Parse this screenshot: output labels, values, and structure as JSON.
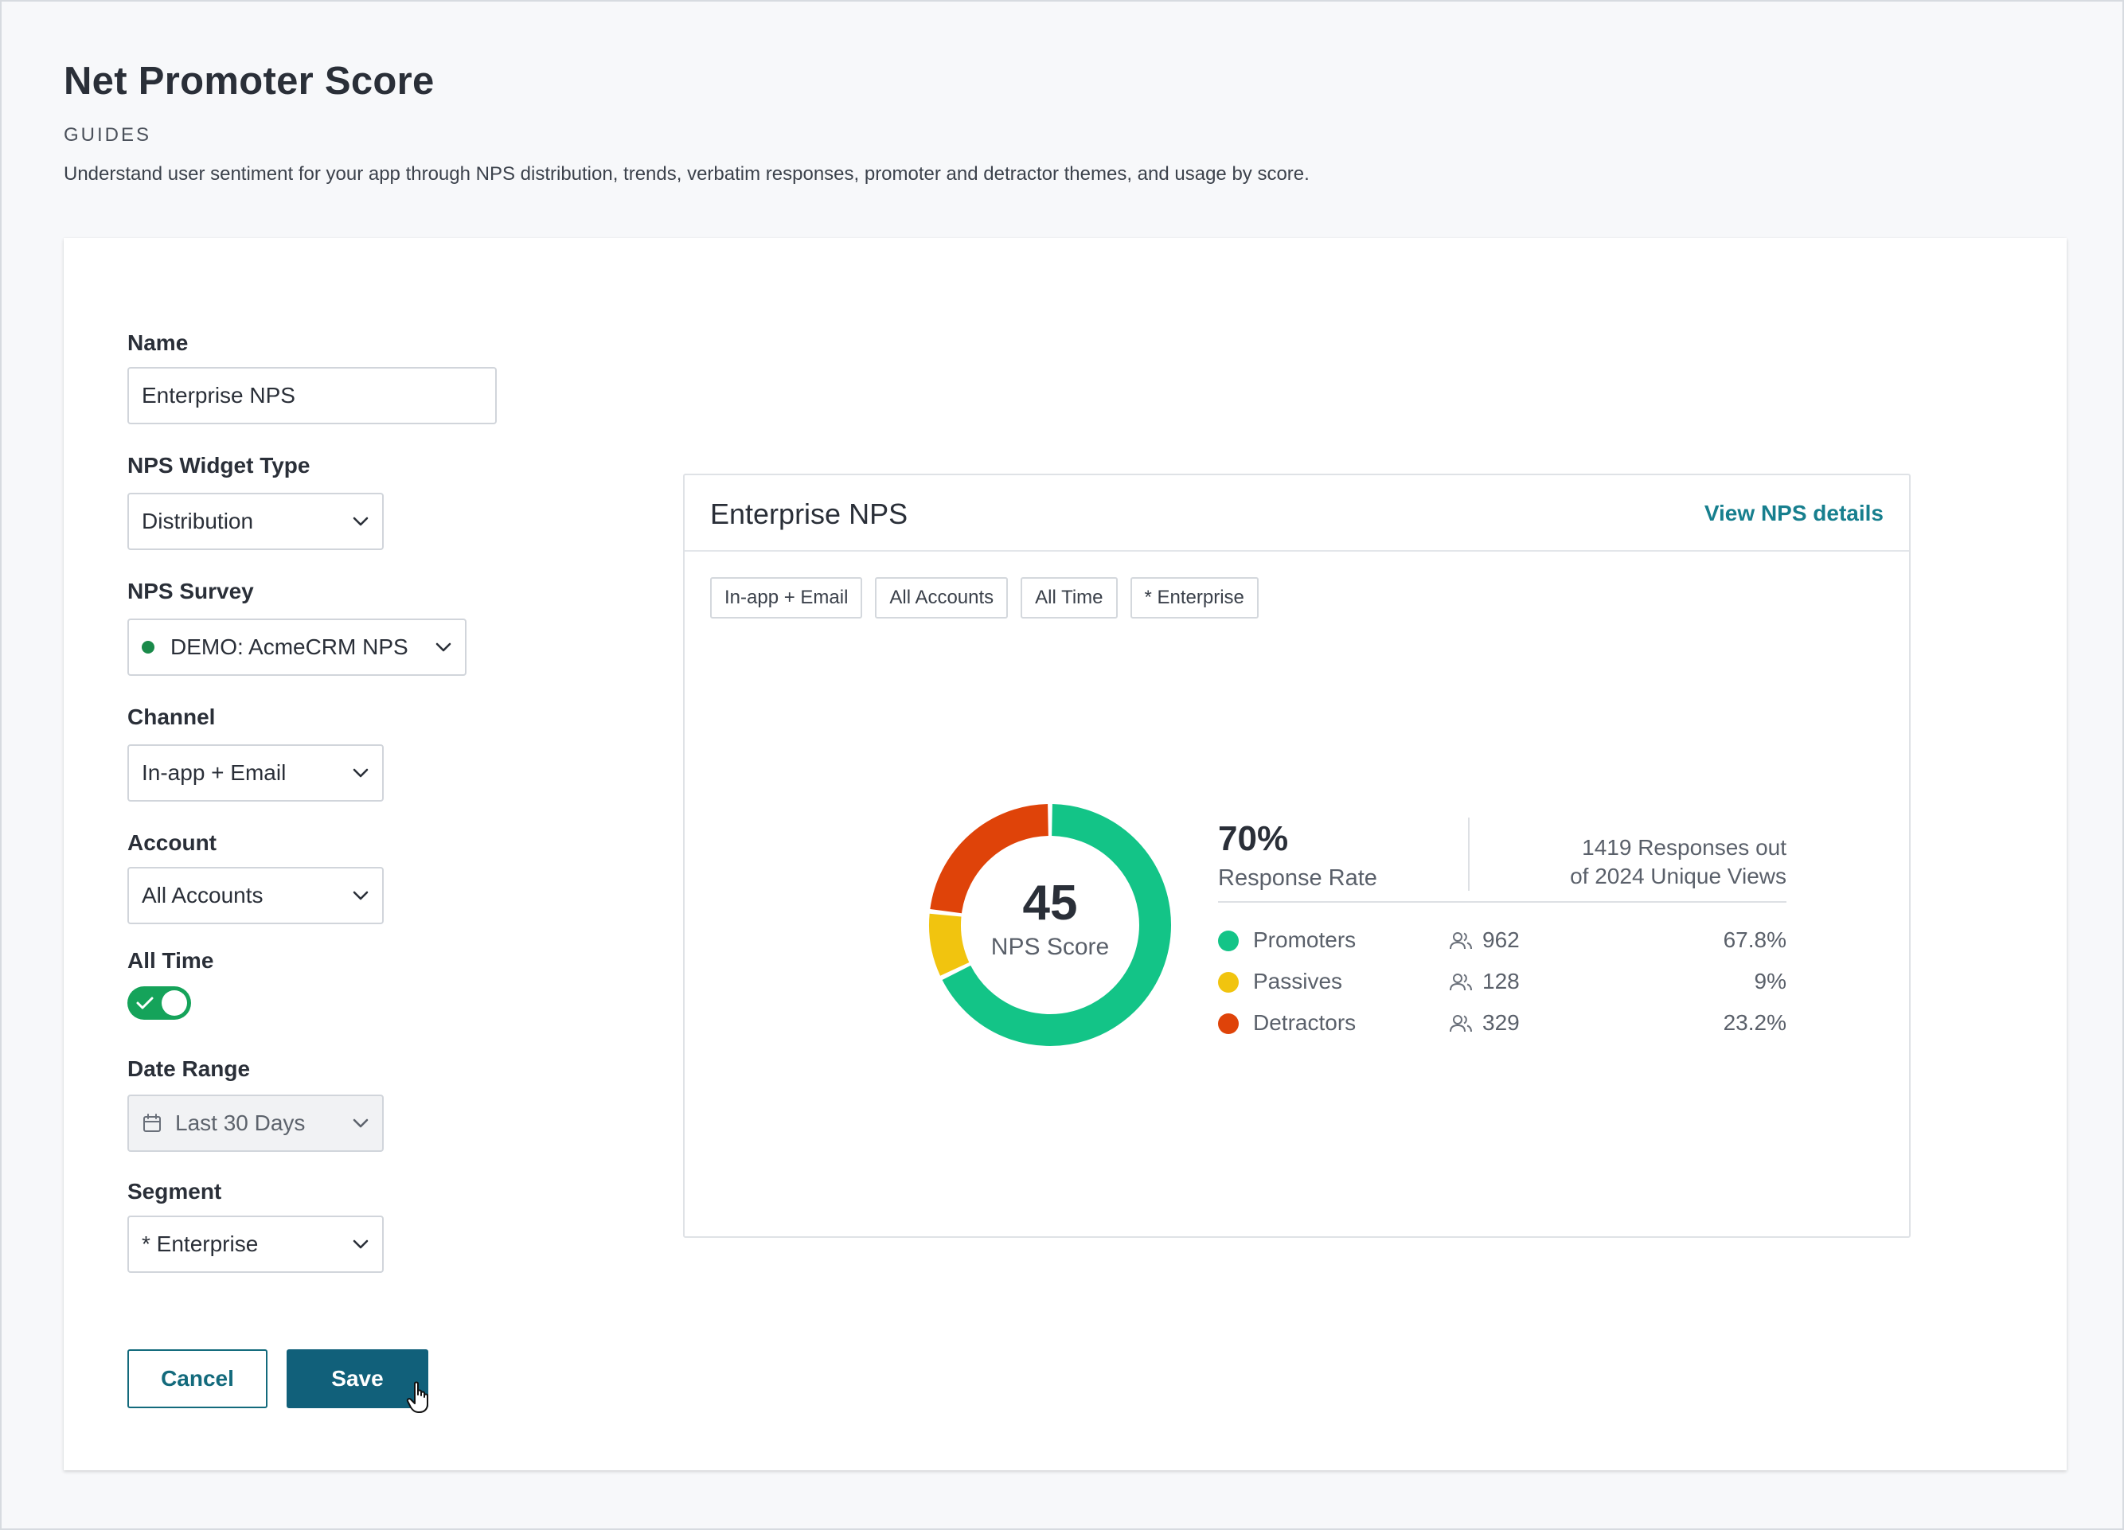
{
  "page": {
    "title": "Net Promoter Score",
    "category": "GUIDES",
    "description": "Understand user sentiment for your app through NPS distribution, trends, verbatim responses, promoter and detractor themes, and usage by score."
  },
  "form": {
    "name": {
      "label": "Name",
      "value": "Enterprise NPS"
    },
    "widget_type": {
      "label": "NPS Widget Type",
      "value": "Distribution"
    },
    "survey": {
      "label": "NPS Survey",
      "value": "DEMO: AcmeCRM NPS",
      "status_color": "#1a8a4a"
    },
    "channel": {
      "label": "Channel",
      "value": "In-app + Email"
    },
    "account": {
      "label": "Account",
      "value": "All Accounts"
    },
    "all_time": {
      "label": "All Time",
      "enabled": true
    },
    "date_range": {
      "label": "Date Range",
      "value": "Last 30 Days",
      "disabled": true
    },
    "segment": {
      "label": "Segment",
      "value": "* Enterprise"
    }
  },
  "actions": {
    "cancel_label": "Cancel",
    "save_label": "Save"
  },
  "preview": {
    "title": "Enterprise NPS",
    "details_link": "View NPS details",
    "chips": [
      "In-app + Email",
      "All Accounts",
      "All Time",
      "* Enterprise"
    ],
    "score": "45",
    "score_label": "NPS Score",
    "response_rate": "70%",
    "response_rate_label": "Response Rate",
    "responses_line1": "1419 Responses out",
    "responses_line2": "of 2024 Unique Views",
    "legend": [
      {
        "name": "Promoters",
        "count": "962",
        "percent": "67.8%",
        "color": "#13c487"
      },
      {
        "name": "Passives",
        "count": "128",
        "percent": "9%",
        "color": "#f1c40f"
      },
      {
        "name": "Detractors",
        "count": "329",
        "percent": "23.2%",
        "color": "#df4309"
      }
    ]
  },
  "chart_data": {
    "type": "pie",
    "title": "Enterprise NPS",
    "center_value": 45,
    "center_label": "NPS Score",
    "categories": [
      "Promoters",
      "Passives",
      "Detractors"
    ],
    "values": [
      67.8,
      9,
      23.2
    ],
    "counts": [
      962,
      128,
      329
    ],
    "colors": [
      "#13c487",
      "#f1c40f",
      "#df4309"
    ]
  },
  "colors": {
    "accent": "#11607a",
    "link": "#177f8e",
    "toggle_on": "#15a35a"
  }
}
